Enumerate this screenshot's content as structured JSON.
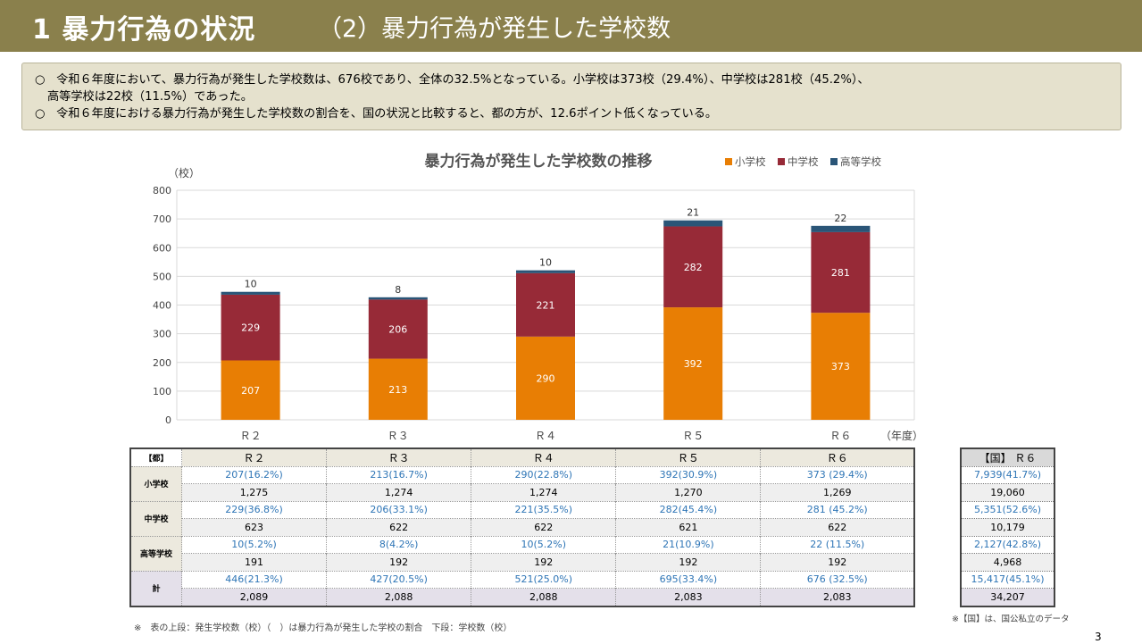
{
  "header": {
    "section_title": "1 暴力行為の状況",
    "subsection_title": "（2）暴力行為が発生した学校数"
  },
  "summary": {
    "bullet": "○",
    "line1": "令和６年度において、暴力行為が発生した学校数は、676校であり、全体の32.5%となっている。小学校は373校（29.4%）、中学校は281校（45.2%）、",
    "line1_cont": "高等学校は22校（11.5%）であった。",
    "line2": "令和６年度における暴力行為が発生した学校数の割合を、国の状況と比較すると、都の方が、12.6ポイント低くなっている。"
  },
  "chart_data": {
    "type": "bar",
    "stacked": true,
    "title": "暴力行為が発生した学校数の推移",
    "ylabel": "（校）",
    "xlabel": "（年度）",
    "categories": [
      "Ｒ２",
      "Ｒ３",
      "Ｒ４",
      "Ｒ５",
      "Ｒ６"
    ],
    "ylim": [
      0,
      800
    ],
    "yticks": [
      0,
      100,
      200,
      300,
      400,
      500,
      600,
      700,
      800
    ],
    "grid": true,
    "legend_position": "top-right",
    "series": [
      {
        "name": "小学校",
        "color": "#e87e04",
        "values": [
          207,
          213,
          290,
          392,
          373
        ]
      },
      {
        "name": "中学校",
        "color": "#972a37",
        "values": [
          229,
          206,
          221,
          282,
          281
        ]
      },
      {
        "name": "高等学校",
        "color": "#2a5577",
        "values": [
          10,
          8,
          10,
          21,
          22
        ]
      }
    ]
  },
  "tokyo_table": {
    "corner": "【都】",
    "columns": [
      "Ｒ２",
      "Ｒ３",
      "Ｒ４",
      "Ｒ５",
      "Ｒ６"
    ],
    "rows": [
      {
        "label": "小学校",
        "top": [
          "207(16.2%)",
          "213(16.7%)",
          "290(22.8%)",
          "392(30.9%)",
          "373 (29.4%)"
        ],
        "bottom": [
          "1,275",
          "1,274",
          "1,274",
          "1,270",
          "1,269"
        ]
      },
      {
        "label": "中学校",
        "top": [
          "229(36.8%)",
          "206(33.1%)",
          "221(35.5%)",
          "282(45.4%)",
          "281 (45.2%)"
        ],
        "bottom": [
          "623",
          "622",
          "622",
          "621",
          "622"
        ]
      },
      {
        "label": "高等学校",
        "top": [
          "10(5.2%)",
          "8(4.2%)",
          "10(5.2%)",
          "21(10.9%)",
          "22 (11.5%)"
        ],
        "bottom": [
          "191",
          "192",
          "192",
          "192",
          "192"
        ]
      },
      {
        "label": "計",
        "top": [
          "446(21.3%)",
          "427(20.5%)",
          "521(25.0%)",
          "695(33.4%)",
          "676 (32.5%)"
        ],
        "bottom": [
          "2,089",
          "2,088",
          "2,088",
          "2,083",
          "2,083"
        ]
      }
    ]
  },
  "national_table": {
    "header": "【国】 Ｒ６",
    "cells": [
      "7,939(41.7%)",
      "19,060",
      "5,351(52.6%)",
      "10,179",
      "2,127(42.8%)",
      "4,968",
      "15,417(45.1%)",
      "34,207"
    ]
  },
  "notes": {
    "table_note": "※　表の上段：発生学校数（校）（　）は暴力行為が発生した学校の割合　下段：学校数（校）",
    "national_note": "※【国】は、国公私立のデータ"
  },
  "page_number": "3"
}
